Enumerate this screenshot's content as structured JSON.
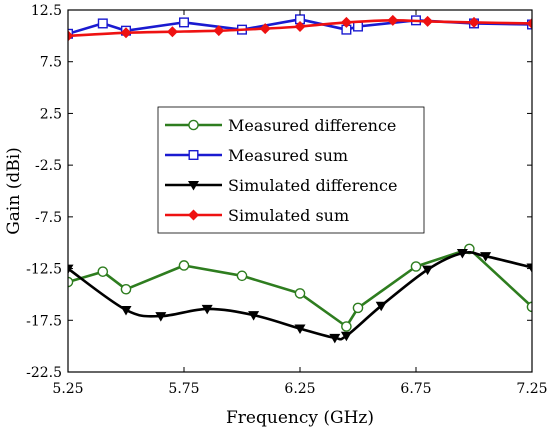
{
  "chart_data": {
    "type": "line",
    "title": "",
    "xlabel": "Frequency (GHz)",
    "ylabel": "Gain (dBi)",
    "xlim": [
      5.25,
      7.25
    ],
    "ylim": [
      -22.5,
      12.5
    ],
    "xticks": [
      "5.25",
      "5.75",
      "6.25",
      "6.75",
      "7.25"
    ],
    "yticks": [
      "12.5",
      "7.5",
      "2.5",
      "-2.5",
      "-7.5",
      "-12.5",
      "-17.5",
      "-22.5"
    ],
    "grid": false,
    "legend_position": "center",
    "series": [
      {
        "name": "Measured difference",
        "color": "#2e7d1f",
        "marker": "circle-open",
        "smooth": false,
        "x": [
          5.25,
          5.4,
          5.5,
          5.75,
          6.0,
          6.25,
          6.45,
          6.5,
          6.75,
          6.98,
          7.25
        ],
        "y": [
          -13.8,
          -12.8,
          -14.5,
          -12.2,
          -13.2,
          -14.9,
          -18.1,
          -16.3,
          -12.3,
          -10.6,
          -16.2
        ]
      },
      {
        "name": "Measured sum",
        "color": "#1a1ad0",
        "marker": "square-open",
        "smooth": false,
        "x": [
          5.25,
          5.4,
          5.5,
          5.75,
          6.0,
          6.25,
          6.45,
          6.5,
          6.75,
          7.0,
          7.25
        ],
        "y": [
          10.2,
          11.2,
          10.5,
          11.3,
          10.6,
          11.6,
          10.6,
          10.9,
          11.5,
          11.2,
          11.1
        ]
      },
      {
        "name": "Simulated difference",
        "color": "#000000",
        "marker": "triangle-down",
        "smooth": true,
        "x": [
          5.25,
          5.5,
          5.65,
          5.85,
          6.05,
          6.25,
          6.4,
          6.45,
          6.6,
          6.8,
          6.95,
          7.05,
          7.25
        ],
        "y": [
          -12.5,
          -16.5,
          -17.1,
          -16.4,
          -17.0,
          -18.3,
          -19.2,
          -19.0,
          -16.1,
          -12.6,
          -11.0,
          -11.3,
          -12.4
        ]
      },
      {
        "name": "Simulated sum",
        "color": "#ee1111",
        "marker": "diamond",
        "smooth": true,
        "x": [
          5.25,
          5.5,
          5.7,
          5.9,
          6.1,
          6.25,
          6.45,
          6.65,
          6.8,
          7.0,
          7.25
        ],
        "y": [
          10.0,
          10.3,
          10.4,
          10.5,
          10.7,
          10.9,
          11.3,
          11.5,
          11.4,
          11.3,
          11.2
        ]
      }
    ]
  }
}
